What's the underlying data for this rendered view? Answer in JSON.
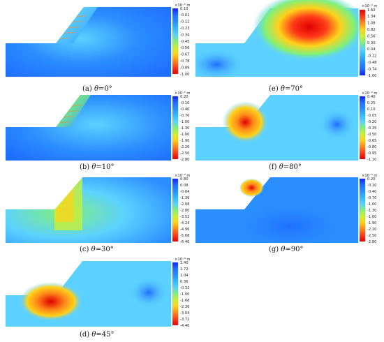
{
  "panels": [
    {
      "id": "a",
      "caption_letter": "(a) ",
      "caption_theta": "θ",
      "caption_value": "=0°",
      "colorbar_unit": "×10⁻³ m",
      "ticks": [
        "0.10",
        "-0.01",
        "-0.12",
        "-0.23",
        "-0.34",
        "-0.45",
        "-0.56",
        "-0.67",
        "-0.78",
        "-0.89",
        "-1.00"
      ],
      "colors": {
        "bg": "#1f6fff",
        "slope": "#5cd1ff",
        "top": "#2a8eff"
      }
    },
    {
      "id": "b",
      "caption_letter": "(b) ",
      "caption_theta": "θ",
      "caption_value": "=10°",
      "colorbar_unit": "×10⁻³ m",
      "ticks": [
        "0.20",
        "-0.10",
        "-0.40",
        "-0.70",
        "-1.00",
        "-1.30",
        "-1.60",
        "-1.90",
        "-2.20",
        "-2.50",
        "-2.80"
      ],
      "colors": {
        "bg": "#1f6fff",
        "slope": "#5cd1ff",
        "top": "#2a8eff"
      }
    },
    {
      "id": "c",
      "caption_letter": "(c) ",
      "caption_theta": "θ",
      "caption_value": "=30°",
      "colorbar_unit": "×10⁻³ m",
      "ticks": [
        "0.80",
        "0.08",
        "-0.64",
        "-1.36",
        "-2.08",
        "-2.80",
        "-3.52",
        "-4.24",
        "-4.96",
        "-5.68",
        "-6.40"
      ],
      "colors": {
        "bg": "#2a8eff",
        "slope": "#7ff07a",
        "top": "#5cd1ff"
      }
    },
    {
      "id": "d",
      "caption_letter": "(d) ",
      "caption_theta": "θ",
      "caption_value": "=45°",
      "colorbar_unit": "×10⁻³ m",
      "ticks": [
        "2.40",
        "1.72",
        "1.04",
        "0.36",
        "-0.32",
        "-1.00",
        "-1.68",
        "-2.36",
        "-3.04",
        "-3.72",
        "-4.40"
      ],
      "colors": {
        "bg": "#5cd1ff",
        "slope": "#ff3b1a",
        "top": "#1f6fff"
      }
    },
    {
      "id": "e",
      "caption_letter": "(e) ",
      "caption_theta": "θ",
      "caption_value": "=70°",
      "colorbar_unit": "×10⁻³ m",
      "ticks": [
        "1.60",
        "1.34",
        "1.08",
        "0.82",
        "0.56",
        "0.30",
        "0.04",
        "-0.22",
        "-0.48",
        "-0.74",
        "-1.00"
      ],
      "colors": {
        "bg": "#2a8eff",
        "slope": "#ffd21a",
        "top": "#ff3b1a"
      }
    },
    {
      "id": "f",
      "caption_letter": "(f) ",
      "caption_theta": "θ",
      "caption_value": "=80°",
      "colorbar_unit": "×10⁻³ m",
      "ticks": [
        "0.40",
        "0.25",
        "0.10",
        "-0.05",
        "-0.20",
        "-0.35",
        "-0.50",
        "-0.65",
        "-0.80",
        "-0.95",
        "-1.10"
      ],
      "colors": {
        "bg": "#5cd1ff",
        "slope": "#ff6a1a",
        "top": "#1f6fff"
      }
    },
    {
      "id": "g",
      "caption_letter": "(g) ",
      "caption_theta": "θ",
      "caption_value": "=90°",
      "colorbar_unit": "×10⁻³ m",
      "ticks": [
        "0.20",
        "-0.10",
        "-0.40",
        "-0.70",
        "-1.00",
        "-1.30",
        "-1.60",
        "-1.90",
        "-2.20",
        "-2.50",
        "-2.80"
      ],
      "colors": {
        "bg": "#2a8eff",
        "slope": "#ffd21a",
        "top": "#5cd1ff"
      }
    }
  ],
  "colorbar_gradient": [
    "#1020ff",
    "#1f6fff",
    "#2a8eff",
    "#34b8ff",
    "#5cd1ff",
    "#7ff07a",
    "#c8f03a",
    "#ffd21a",
    "#ff8a1a",
    "#ff3b1a",
    "#e00000"
  ]
}
